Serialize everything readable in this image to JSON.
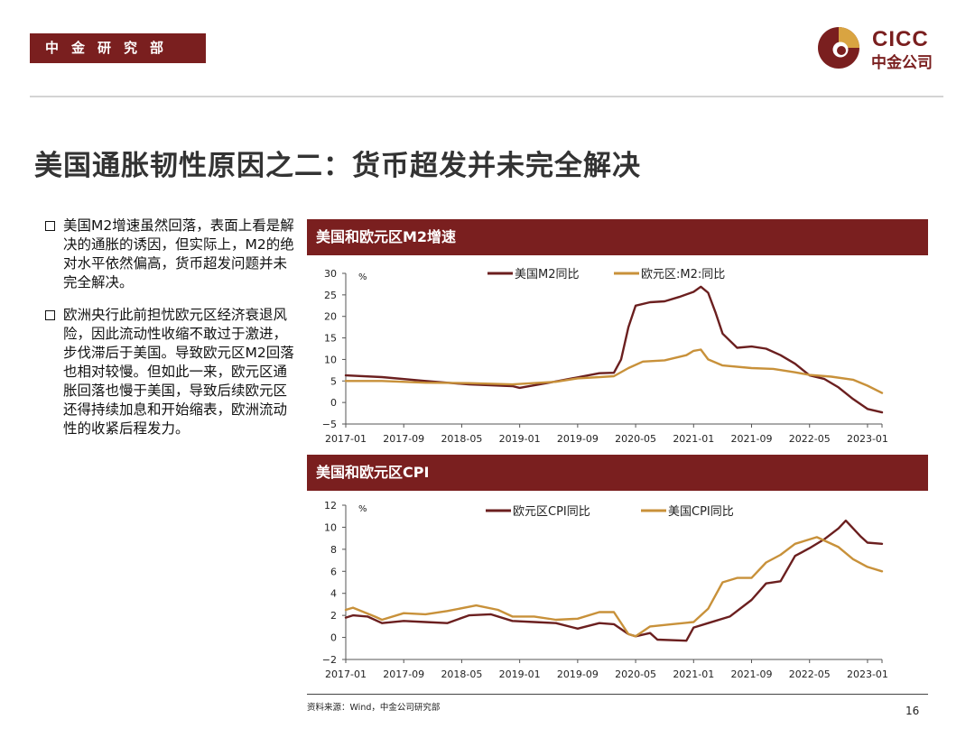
{
  "header": {
    "department": "中金研究部",
    "logo_en": "CICC",
    "logo_cn": "中金公司"
  },
  "title": "美国通胀韧性原因之二：货币超发并未完全解决",
  "bullets": [
    "美国M2增速虽然回落，表面上看是解决的通胀的诱因，但实际上，M2的绝对水平依然偏高，货币超发问题并未完全解决。",
    "欧洲央行此前担忧欧元区经济衰退风险，因此流动性收缩不敢过于激进，步伐滞后于美国。导致欧元区M2回落也相对较慢。但如此一来，欧元区通胀回落也慢于美国，导致后续欧元区还得持续加息和开始缩表，欧洲流动性的收紧后程发力。"
  ],
  "colors": {
    "brand": "#7a1f1f",
    "series_dark": "#6b1f1f",
    "series_gold": "#c8913a"
  },
  "chart_data": [
    {
      "type": "line",
      "title": "美国和欧元区M2增速",
      "ylabel": "%",
      "ylim": [
        -5,
        30
      ],
      "yticks": [
        -5,
        0,
        5,
        10,
        15,
        20,
        25,
        30
      ],
      "legend_position": "top",
      "x_tick_labels": [
        "2017-01",
        "2017-09",
        "2018-05",
        "2019-01",
        "2019-09",
        "2020-05",
        "2021-01",
        "2021-09",
        "2022-05",
        "2023-01"
      ],
      "x_range": [
        "2017-01",
        "2023-03"
      ],
      "series": [
        {
          "name": "美国M2同比",
          "color": "#6b1f1f",
          "points": [
            [
              "2017-01",
              6.3
            ],
            [
              "2017-06",
              5.9
            ],
            [
              "2017-12",
              5.0
            ],
            [
              "2018-06",
              4.2
            ],
            [
              "2018-12",
              3.8
            ],
            [
              "2019-01",
              3.4
            ],
            [
              "2019-06",
              4.9
            ],
            [
              "2019-12",
              6.8
            ],
            [
              "2020-02",
              6.9
            ],
            [
              "2020-03",
              10.0
            ],
            [
              "2020-04",
              17.5
            ],
            [
              "2020-05",
              22.5
            ],
            [
              "2020-07",
              23.3
            ],
            [
              "2020-09",
              23.5
            ],
            [
              "2020-11",
              24.5
            ],
            [
              "2021-01",
              25.7
            ],
            [
              "2021-02",
              26.9
            ],
            [
              "2021-03",
              25.5
            ],
            [
              "2021-04",
              21.0
            ],
            [
              "2021-05",
              16.0
            ],
            [
              "2021-07",
              12.7
            ],
            [
              "2021-09",
              13.0
            ],
            [
              "2021-11",
              12.5
            ],
            [
              "2022-01",
              11.0
            ],
            [
              "2022-03",
              9.0
            ],
            [
              "2022-05",
              6.3
            ],
            [
              "2022-07",
              5.5
            ],
            [
              "2022-09",
              3.5
            ],
            [
              "2022-11",
              0.8
            ],
            [
              "2023-01",
              -1.5
            ],
            [
              "2023-03",
              -2.3
            ]
          ]
        },
        {
          "name": "欧元区:M2:同比",
          "color": "#c8913a",
          "points": [
            [
              "2017-01",
              5.0
            ],
            [
              "2017-06",
              5.0
            ],
            [
              "2017-12",
              4.6
            ],
            [
              "2018-06",
              4.5
            ],
            [
              "2018-12",
              4.2
            ],
            [
              "2019-06",
              4.8
            ],
            [
              "2019-09",
              5.6
            ],
            [
              "2019-12",
              5.9
            ],
            [
              "2020-02",
              6.1
            ],
            [
              "2020-04",
              8.0
            ],
            [
              "2020-06",
              9.5
            ],
            [
              "2020-09",
              9.8
            ],
            [
              "2020-12",
              11.0
            ],
            [
              "2021-01",
              12.0
            ],
            [
              "2021-02",
              12.3
            ],
            [
              "2021-03",
              10.0
            ],
            [
              "2021-05",
              8.6
            ],
            [
              "2021-09",
              8.0
            ],
            [
              "2021-12",
              7.8
            ],
            [
              "2022-03",
              7.0
            ],
            [
              "2022-05",
              6.4
            ],
            [
              "2022-08",
              6.0
            ],
            [
              "2022-11",
              5.3
            ],
            [
              "2023-01",
              3.9
            ],
            [
              "2023-03",
              2.2
            ]
          ]
        }
      ]
    },
    {
      "type": "line",
      "title": "美国和欧元区CPI",
      "ylabel": "%",
      "ylim": [
        -2,
        12
      ],
      "yticks": [
        -2,
        0,
        2,
        4,
        6,
        8,
        10,
        12
      ],
      "legend_position": "top",
      "x_tick_labels": [
        "2017-01",
        "2017-09",
        "2018-05",
        "2019-01",
        "2019-09",
        "2020-05",
        "2021-01",
        "2021-09",
        "2022-05",
        "2023-01"
      ],
      "x_range": [
        "2017-01",
        "2023-03"
      ],
      "series": [
        {
          "name": "欧元区CPI同比",
          "color": "#6b1f1f",
          "points": [
            [
              "2017-01",
              1.8
            ],
            [
              "2017-02",
              2.0
            ],
            [
              "2017-04",
              1.9
            ],
            [
              "2017-06",
              1.3
            ],
            [
              "2017-09",
              1.5
            ],
            [
              "2017-12",
              1.4
            ],
            [
              "2018-03",
              1.3
            ],
            [
              "2018-06",
              2.0
            ],
            [
              "2018-09",
              2.1
            ],
            [
              "2018-12",
              1.5
            ],
            [
              "2019-03",
              1.4
            ],
            [
              "2019-06",
              1.3
            ],
            [
              "2019-09",
              0.8
            ],
            [
              "2019-12",
              1.3
            ],
            [
              "2020-02",
              1.2
            ],
            [
              "2020-04",
              0.3
            ],
            [
              "2020-05",
              0.1
            ],
            [
              "2020-07",
              0.4
            ],
            [
              "2020-08",
              -0.2
            ],
            [
              "2020-12",
              -0.3
            ],
            [
              "2021-01",
              0.9
            ],
            [
              "2021-03",
              1.3
            ],
            [
              "2021-06",
              1.9
            ],
            [
              "2021-09",
              3.4
            ],
            [
              "2021-11",
              4.9
            ],
            [
              "2022-01",
              5.1
            ],
            [
              "2022-03",
              7.4
            ],
            [
              "2022-05",
              8.1
            ],
            [
              "2022-07",
              8.9
            ],
            [
              "2022-09",
              9.9
            ],
            [
              "2022-10",
              10.6
            ],
            [
              "2022-12",
              9.2
            ],
            [
              "2023-01",
              8.6
            ],
            [
              "2023-03",
              8.5
            ]
          ]
        },
        {
          "name": "美国CPI同比",
          "color": "#c8913a",
          "points": [
            [
              "2017-01",
              2.5
            ],
            [
              "2017-02",
              2.7
            ],
            [
              "2017-05",
              1.9
            ],
            [
              "2017-06",
              1.6
            ],
            [
              "2017-09",
              2.2
            ],
            [
              "2017-12",
              2.1
            ],
            [
              "2018-03",
              2.4
            ],
            [
              "2018-07",
              2.9
            ],
            [
              "2018-10",
              2.5
            ],
            [
              "2018-12",
              1.9
            ],
            [
              "2019-03",
              1.9
            ],
            [
              "2019-06",
              1.6
            ],
            [
              "2019-09",
              1.7
            ],
            [
              "2019-12",
              2.3
            ],
            [
              "2020-02",
              2.3
            ],
            [
              "2020-04",
              0.3
            ],
            [
              "2020-05",
              0.1
            ],
            [
              "2020-07",
              1.0
            ],
            [
              "2020-10",
              1.2
            ],
            [
              "2021-01",
              1.4
            ],
            [
              "2021-03",
              2.6
            ],
            [
              "2021-05",
              5.0
            ],
            [
              "2021-07",
              5.4
            ],
            [
              "2021-09",
              5.4
            ],
            [
              "2021-11",
              6.8
            ],
            [
              "2022-01",
              7.5
            ],
            [
              "2022-03",
              8.5
            ],
            [
              "2022-06",
              9.1
            ],
            [
              "2022-09",
              8.2
            ],
            [
              "2022-11",
              7.1
            ],
            [
              "2023-01",
              6.4
            ],
            [
              "2023-03",
              6.0
            ]
          ]
        }
      ]
    }
  ],
  "source": "资料来源：Wind，中金公司研究部",
  "page_number": "16"
}
